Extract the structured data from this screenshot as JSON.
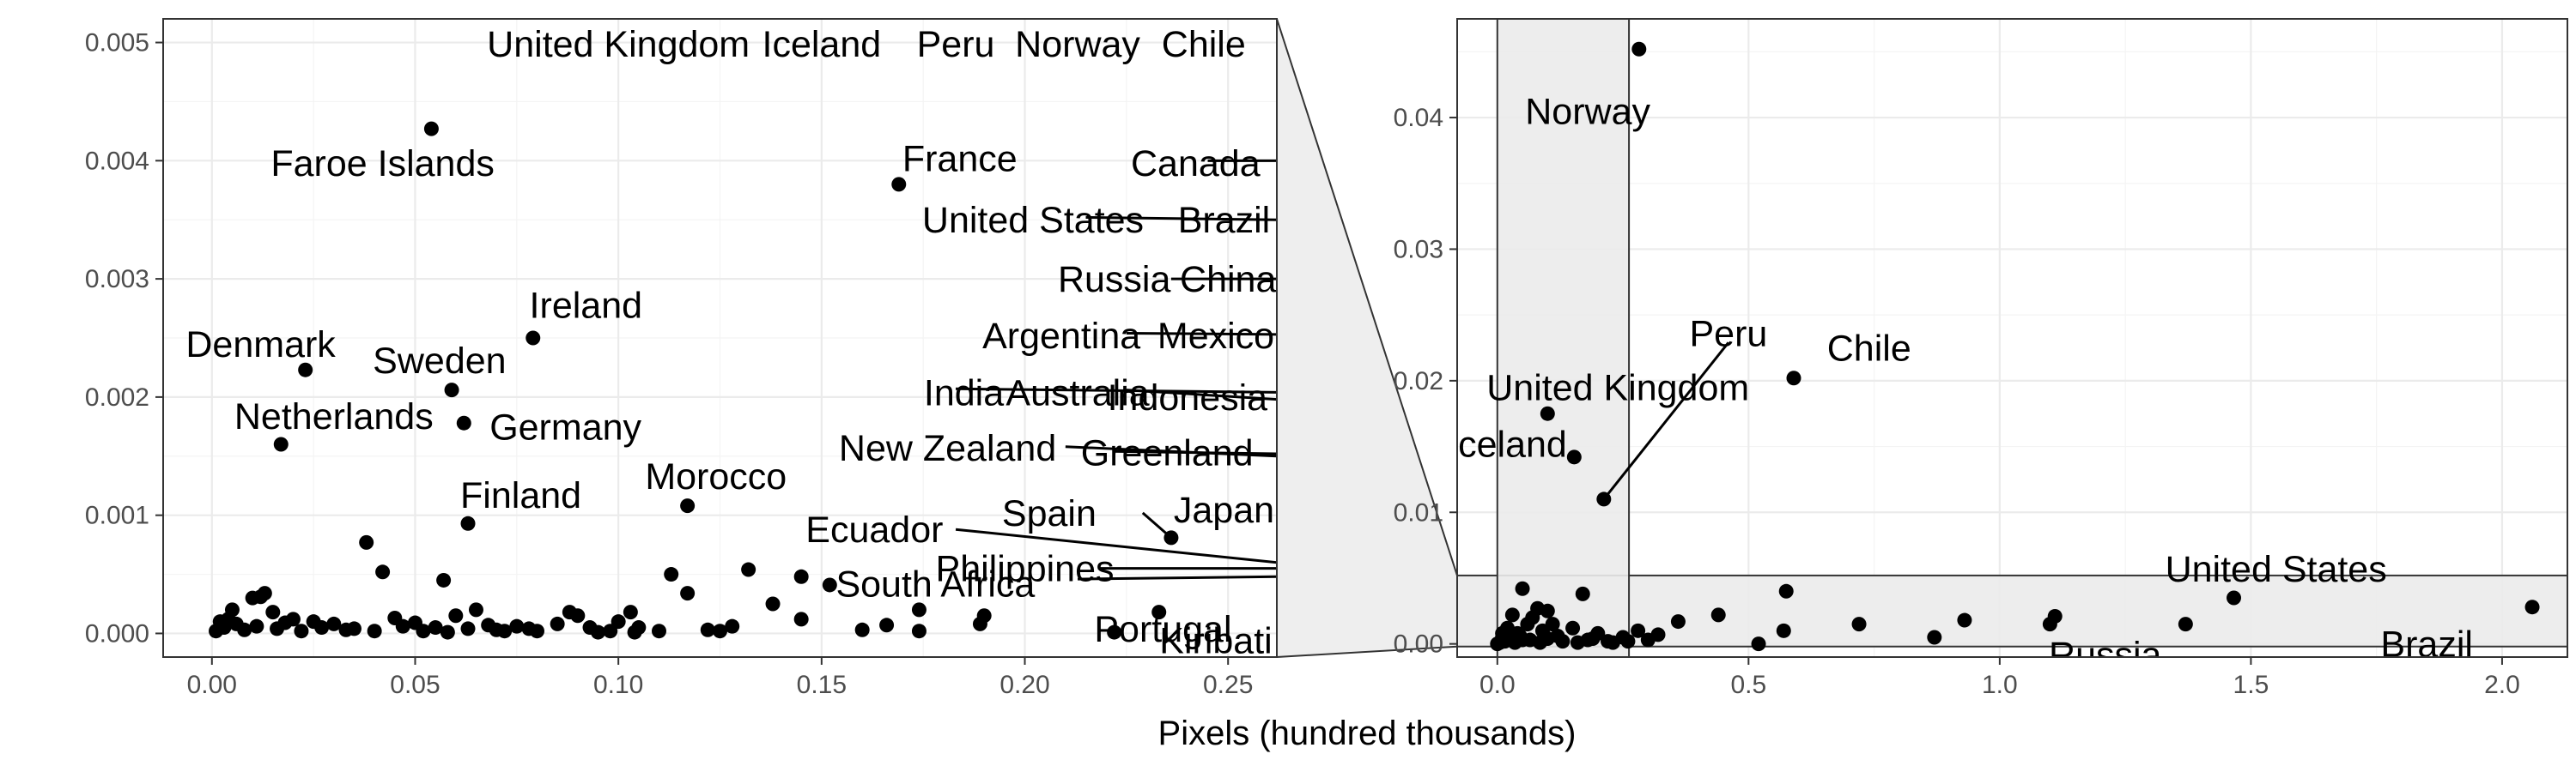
{
  "chart_data": {
    "type": "scatter",
    "xlabel": "Pixels (hundred thousands)",
    "panels": [
      {
        "name": "main",
        "xlim": [
          -0.012,
          0.262
        ],
        "ylim": [
          -0.0002,
          0.0052
        ],
        "xticks": [
          0.0,
          0.05,
          0.1,
          0.15,
          0.2,
          0.25
        ],
        "xtick_labels": [
          "0.00",
          "0.05",
          "0.10",
          "0.15",
          "0.20",
          "0.25"
        ],
        "yticks": [
          0.0,
          0.001,
          0.002,
          0.003,
          0.004,
          0.005
        ],
        "ytick_labels": [
          "0.000",
          "0.001",
          "0.002",
          "0.003",
          "0.004",
          "0.005"
        ],
        "labeled_points": [
          {
            "label": "Faroe Islands",
            "x": 0.054,
            "y": 0.00427,
            "lx": 0.042,
            "ly": 0.00398
          },
          {
            "label": "France",
            "x": 0.169,
            "y": 0.0038,
            "lx": 0.184,
            "ly": 0.00402
          },
          {
            "label": "Ireland",
            "x": 0.079,
            "y": 0.0025,
            "lx": 0.092,
            "ly": 0.00278
          },
          {
            "label": "Denmark",
            "x": 0.023,
            "y": 0.00223,
            "lx": 0.012,
            "ly": 0.00245
          },
          {
            "label": "Sweden",
            "x": 0.059,
            "y": 0.00206,
            "lx": 0.056,
            "ly": 0.00231
          },
          {
            "label": "Netherlands",
            "x": 0.017,
            "y": 0.0016,
            "lx": 0.03,
            "ly": 0.00184
          },
          {
            "label": "Germany",
            "x": 0.062,
            "y": 0.00178,
            "lx": 0.087,
            "ly": 0.00175
          },
          {
            "label": "Morocco",
            "x": 0.117,
            "y": 0.00108,
            "lx": 0.124,
            "ly": 0.00133
          },
          {
            "label": "Finland",
            "x": 0.063,
            "y": 0.00093,
            "lx": 0.076,
            "ly": 0.00117
          }
        ],
        "edge_labels": [
          {
            "label": "United Kingdom",
            "lx": 0.1,
            "ly": 0.00499
          },
          {
            "label": "Iceland",
            "lx": 0.15,
            "ly": 0.00499
          },
          {
            "label": "Peru",
            "lx": 0.183,
            "ly": 0.00499
          },
          {
            "label": "Norway",
            "lx": 0.213,
            "ly": 0.00499
          },
          {
            "label": "Chile",
            "lx": 0.244,
            "ly": 0.00499
          },
          {
            "label": "Canada",
            "lx": 0.242,
            "ly": 0.00398,
            "x1": 0.245,
            "y1": 0.004,
            "x2": 0.262,
            "y2": 0.004
          },
          {
            "label": "United States",
            "lx": 0.202,
            "ly": 0.0035,
            "x1": 0.215,
            "y1": 0.00352,
            "x2": 0.262,
            "y2": 0.0035
          },
          {
            "label": "Brazil",
            "lx": 0.249,
            "ly": 0.0035
          },
          {
            "label": "Russia",
            "lx": 0.222,
            "ly": 0.003,
            "x1": 0.236,
            "y1": 0.003,
            "x2": 0.262,
            "y2": 0.003
          },
          {
            "label": "China",
            "lx": 0.25,
            "ly": 0.003
          },
          {
            "label": "Argentina",
            "lx": 0.209,
            "ly": 0.00252,
            "x1": 0.225,
            "y1": 0.00254,
            "x2": 0.262,
            "y2": 0.00253
          },
          {
            "label": "Mexico",
            "lx": 0.247,
            "ly": 0.00252
          },
          {
            "label": "India",
            "lx": 0.185,
            "ly": 0.00204,
            "x1": 0.183,
            "y1": 0.00207,
            "x2": 0.262,
            "y2": 0.00204
          },
          {
            "label": "Australia",
            "lx": 0.213,
            "ly": 0.00204,
            "x1": 0.225,
            "y1": 0.00206,
            "x2": 0.262,
            "y2": 0.00198
          },
          {
            "label": "Indonesia",
            "lx": 0.24,
            "ly": 0.002
          },
          {
            "label": "New Zealand",
            "lx": 0.181,
            "ly": 0.00157,
            "x1": 0.21,
            "y1": 0.00158,
            "x2": 0.262,
            "y2": 0.0015
          },
          {
            "label": "Greenland",
            "lx": 0.235,
            "ly": 0.00153,
            "x1": 0.222,
            "y1": 0.00154,
            "x2": 0.262,
            "y2": 0.00152
          },
          {
            "label": "Japan",
            "lx": 0.249,
            "ly": 0.00105
          },
          {
            "label": "Spain",
            "lx": 0.206,
            "ly": 0.00102,
            "x1": 0.229,
            "y1": 0.00102,
            "x2": 0.236,
            "y2": 0.00081
          },
          {
            "label": "Ecuador",
            "lx": 0.163,
            "ly": 0.00088,
            "x1": 0.183,
            "y1": 0.00088,
            "x2": 0.262,
            "y2": 0.0006
          },
          {
            "label": "Philippines",
            "lx": 0.2,
            "ly": 0.00055,
            "x1": 0.218,
            "y1": 0.00055,
            "x2": 0.262,
            "y2": 0.00055
          },
          {
            "label": "South Africa",
            "lx": 0.178,
            "ly": 0.00042,
            "x1": 0.213,
            "y1": 0.00046,
            "x2": 0.262,
            "y2": 0.00048
          },
          {
            "label": "Portugal",
            "lx": 0.234,
            "ly": 4e-05
          },
          {
            "label": "Kiribati",
            "lx": 0.247,
            "ly": -6e-05
          }
        ],
        "points": [
          [
            0.236,
            0.00081
          ],
          [
            0.038,
            0.00077
          ],
          [
            0.042,
            0.00052
          ],
          [
            0.057,
            0.00045
          ],
          [
            0.113,
            0.0005
          ],
          [
            0.132,
            0.00054
          ],
          [
            0.117,
            0.00034
          ],
          [
            0.145,
            0.00048
          ],
          [
            0.152,
            0.00041
          ],
          [
            0.138,
            0.00025
          ],
          [
            0.174,
            0.0002
          ],
          [
            0.19,
            0.00015
          ],
          [
            0.233,
            0.00018
          ],
          [
            0.222,
            1e-05
          ],
          [
            0.012,
            0.00031
          ],
          [
            0.013,
            0.00034
          ],
          [
            0.01,
            0.0003
          ],
          [
            0.005,
            0.0002
          ],
          [
            0.015,
            0.00018
          ],
          [
            0.02,
            0.00012
          ],
          [
            0.025,
            0.0001
          ],
          [
            0.03,
            8e-05
          ],
          [
            0.035,
            4e-05
          ],
          [
            0.045,
            0.00013
          ],
          [
            0.05,
            9e-05
          ],
          [
            0.055,
            5e-05
          ],
          [
            0.06,
            0.00015
          ],
          [
            0.065,
            0.0002
          ],
          [
            0.07,
            3e-05
          ],
          [
            0.075,
            6e-05
          ],
          [
            0.08,
            2e-05
          ],
          [
            0.085,
            8e-05
          ],
          [
            0.088,
            0.00018
          ],
          [
            0.09,
            0.00015
          ],
          [
            0.095,
            1e-05
          ],
          [
            0.1,
            0.0001
          ],
          [
            0.103,
            0.00018
          ],
          [
            0.105,
            5e-05
          ],
          [
            0.122,
            3e-05
          ],
          [
            0.125,
            2e-05
          ],
          [
            0.145,
            0.00012
          ],
          [
            0.16,
            3e-05
          ],
          [
            0.166,
            7e-05
          ],
          [
            0.174,
            2e-05
          ],
          [
            0.189,
            8e-05
          ],
          [
            0.003,
            5e-05
          ],
          [
            0.002,
            0.0001
          ],
          [
            0.001,
            2e-05
          ],
          [
            0.004,
            0.00012
          ],
          [
            0.006,
            8e-05
          ],
          [
            0.008,
            3e-05
          ],
          [
            0.011,
            6e-05
          ],
          [
            0.016,
            4e-05
          ],
          [
            0.018,
            9e-05
          ],
          [
            0.022,
            2e-05
          ],
          [
            0.027,
            5e-05
          ],
          [
            0.033,
            3e-05
          ],
          [
            0.04,
            2e-05
          ],
          [
            0.047,
            6e-05
          ],
          [
            0.052,
            2e-05
          ],
          [
            0.058,
            1e-05
          ],
          [
            0.063,
            4e-05
          ],
          [
            0.068,
            7e-05
          ],
          [
            0.072,
            2e-05
          ],
          [
            0.078,
            4e-05
          ],
          [
            0.093,
            5e-05
          ],
          [
            0.098,
            2e-05
          ],
          [
            0.104,
            1e-05
          ],
          [
            0.11,
            2e-05
          ],
          [
            0.128,
            6e-05
          ]
        ]
      },
      {
        "name": "zoom",
        "xlim": [
          -0.08,
          2.13
        ],
        "ylim": [
          -0.001,
          0.0475
        ],
        "xticks": [
          0.0,
          0.5,
          1.0,
          1.5,
          2.0
        ],
        "xtick_labels": [
          "0.0",
          "0.5",
          "1.0",
          "1.5",
          "2.0"
        ],
        "yticks": [
          0.0,
          0.01,
          0.02,
          0.03,
          0.04
        ],
        "ytick_labels": [
          "0.00",
          "0.01",
          "0.02",
          "0.03",
          "0.04"
        ],
        "highlight_region": {
          "x": [
            0.0,
            0.262
          ],
          "y": [
            -0.0002,
            0.0052
          ]
        },
        "labeled_points": [
          {
            "label": "Norway",
            "x": 0.282,
            "y": 0.0452,
            "lx": 0.18,
            "ly": 0.0405
          },
          {
            "label": "Chile",
            "x": 0.59,
            "y": 0.0202,
            "lx": 0.74,
            "ly": 0.0225
          },
          {
            "label": "Peru",
            "x": 0.212,
            "y": 0.011,
            "lx": 0.46,
            "ly": 0.0236,
            "x1": 0.46,
            "y1": 0.0229,
            "x2": 0.212,
            "y2": 0.011
          },
          {
            "label": "United Kingdom",
            "x": 0.1,
            "y": 0.0175,
            "lx": 0.24,
            "ly": 0.0195
          },
          {
            "label": "Iceland",
            "x": 0.153,
            "y": 0.0142,
            "lx": 0.02,
            "ly": 0.0152
          },
          {
            "label": "United States",
            "x": 1.466,
            "y": 0.0035,
            "lx": 1.55,
            "ly": 0.0057
          },
          {
            "label": "Russia",
            "x": 1.37,
            "y": 0.0015,
            "lx": 1.21,
            "ly": -0.0008
          },
          {
            "label": "Brazil",
            "x": 2.06,
            "y": 0.0028,
            "lx": 1.85,
            "ly": 0.0
          },
          {
            "label": "",
            "x": 0.575,
            "y": 0.004,
            "lx": null,
            "ly": null
          }
        ],
        "points": [
          [
            0.05,
            0.0042
          ],
          [
            0.17,
            0.0038
          ],
          [
            0.57,
            0.001
          ],
          [
            0.44,
            0.0022
          ],
          [
            0.52,
            0.0
          ],
          [
            0.72,
            0.0015
          ],
          [
            0.87,
            0.0005
          ],
          [
            0.93,
            0.0018
          ],
          [
            1.11,
            0.0021
          ],
          [
            1.1,
            0.0015
          ],
          [
            0.36,
            0.0017
          ],
          [
            0.32,
            0.0007
          ],
          [
            0.28,
            0.001
          ],
          [
            0.25,
            0.0005
          ],
          [
            0.22,
            0.0002
          ],
          [
            0.2,
            0.0008
          ],
          [
            0.18,
            0.0003
          ],
          [
            0.15,
            0.0012
          ],
          [
            0.12,
            0.0006
          ],
          [
            0.11,
            0.0015
          ],
          [
            0.09,
            0.001
          ],
          [
            0.08,
            0.0027
          ],
          [
            0.07,
            0.002
          ],
          [
            0.06,
            0.0015
          ],
          [
            0.05,
            0.0003
          ],
          [
            0.04,
            0.0008
          ],
          [
            0.03,
            0.0022
          ],
          [
            0.02,
            0.0012
          ],
          [
            0.01,
            0.0005
          ],
          [
            0.005,
            0.0001
          ],
          [
            0.015,
            0.0002
          ],
          [
            0.025,
            0.0004
          ],
          [
            0.035,
            0.0001
          ],
          [
            0.045,
            0.0006
          ],
          [
            0.065,
            0.0003
          ],
          [
            0.085,
            0.0001
          ],
          [
            0.1,
            0.0004
          ],
          [
            0.13,
            0.0002
          ],
          [
            0.16,
            0.0001
          ],
          [
            0.19,
            0.0004
          ],
          [
            0.23,
            0.0001
          ],
          [
            0.26,
            0.0002
          ],
          [
            0.3,
            0.0003
          ],
          [
            0.1,
            0.0025
          ],
          [
            0.0,
            0.0
          ],
          [
            0.01,
            0.0008
          ],
          [
            0.02,
            0.0003
          ]
        ]
      }
    ]
  }
}
